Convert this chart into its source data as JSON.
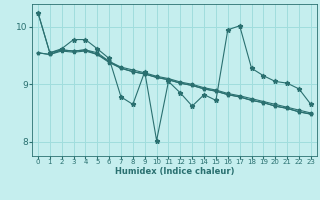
{
  "xlabel": "Humidex (Indice chaleur)",
  "background_color": "#c5eeee",
  "grid_color": "#a0dddd",
  "line_color": "#2a7070",
  "xlim": [
    -0.5,
    23.5
  ],
  "ylim": [
    7.75,
    10.4
  ],
  "yticks": [
    8,
    9,
    10
  ],
  "xticks": [
    0,
    1,
    2,
    3,
    4,
    5,
    6,
    7,
    8,
    9,
    10,
    11,
    12,
    13,
    14,
    15,
    16,
    17,
    18,
    19,
    20,
    21,
    22,
    23
  ],
  "series": [
    [
      10.25,
      9.55,
      9.62,
      9.78,
      9.78,
      9.62,
      9.45,
      8.78,
      8.65,
      9.22,
      8.02,
      9.05,
      8.85,
      8.62,
      8.82,
      8.72,
      9.95,
      10.02,
      9.28,
      9.15,
      9.05,
      9.02,
      8.92,
      8.65
    ],
    [
      9.55,
      9.52,
      9.6,
      9.58,
      9.6,
      9.52,
      9.4,
      9.28,
      9.22,
      9.18,
      9.12,
      9.08,
      9.02,
      8.98,
      8.92,
      8.88,
      8.82,
      8.78,
      8.72,
      8.68,
      8.62,
      8.58,
      8.52,
      8.48
    ],
    [
      9.55,
      9.52,
      9.58,
      9.56,
      9.58,
      9.52,
      9.38,
      9.28,
      9.22,
      9.18,
      9.12,
      9.08,
      9.02,
      8.98,
      8.92,
      8.88,
      8.82,
      8.78,
      8.72,
      8.68,
      8.62,
      8.58,
      8.52,
      8.48
    ],
    [
      10.25,
      9.55,
      9.6,
      9.58,
      9.6,
      9.55,
      9.4,
      9.3,
      9.25,
      9.2,
      9.14,
      9.1,
      9.04,
      9.0,
      8.94,
      8.9,
      8.84,
      8.8,
      8.75,
      8.7,
      8.65,
      8.6,
      8.55,
      8.5
    ]
  ]
}
